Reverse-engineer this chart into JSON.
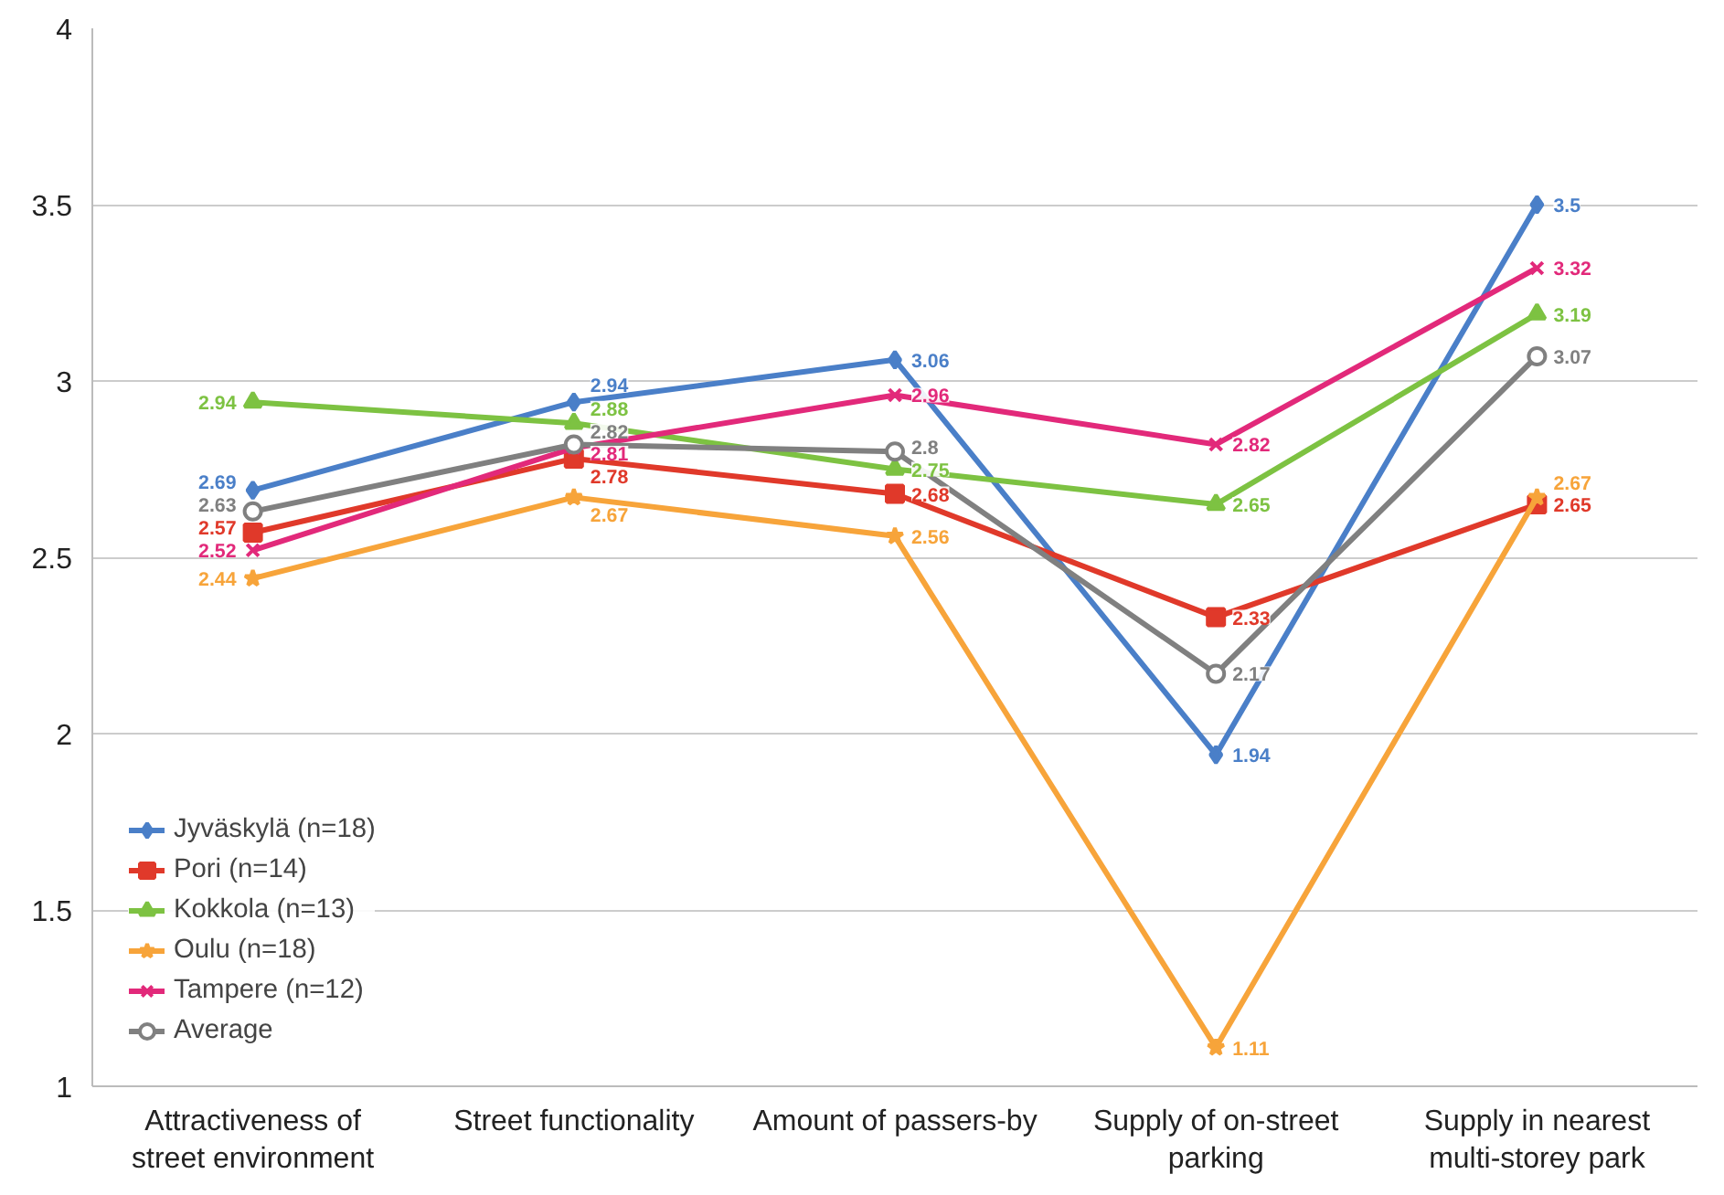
{
  "chart_data": {
    "type": "line",
    "categories": [
      "Attractiveness of street environment",
      "Street functionality",
      "Amount of passers-by",
      "Supply of on-street parking",
      "Supply in nearest multi-storey park"
    ],
    "series": [
      {
        "name": "Jyväskylä (n=18)",
        "color": "#4a7fc8",
        "marker": "diamond",
        "values": [
          2.69,
          2.94,
          3.06,
          1.94,
          3.5
        ]
      },
      {
        "name": "Pori (n=14)",
        "color": "#e0392a",
        "marker": "square",
        "values": [
          2.57,
          2.78,
          2.68,
          2.33,
          2.65
        ]
      },
      {
        "name": "Kokkola (n=13)",
        "color": "#7dc242",
        "marker": "triangle",
        "values": [
          2.94,
          2.88,
          2.75,
          2.65,
          3.19
        ]
      },
      {
        "name": "Oulu (n=18)",
        "color": "#f7a43a",
        "marker": "star",
        "values": [
          2.44,
          2.67,
          2.56,
          1.11,
          2.67
        ]
      },
      {
        "name": "Tampere (n=12)",
        "color": "#e2297a",
        "marker": "cross",
        "values": [
          2.52,
          2.81,
          2.96,
          2.82,
          3.32
        ]
      },
      {
        "name": "Average",
        "color": "#808080",
        "marker": "circle",
        "values": [
          2.63,
          2.82,
          2.8,
          2.17,
          3.07
        ]
      }
    ],
    "ylim": [
      1,
      4
    ],
    "yticks": [
      1,
      1.5,
      2,
      2.5,
      3,
      3.5,
      4
    ],
    "grid": "y",
    "legend": "bottom left",
    "data_labels": true,
    "line_style": "solid"
  }
}
